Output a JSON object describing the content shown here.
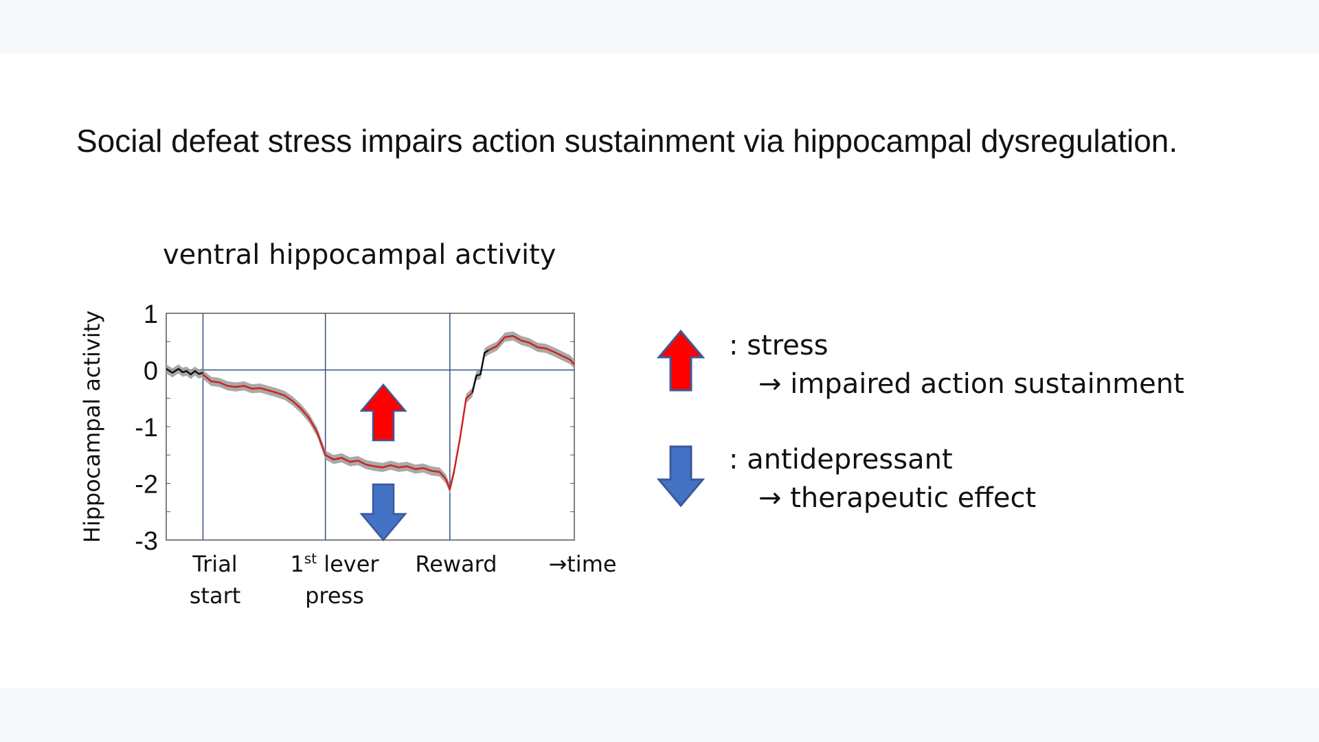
{
  "headline": "Social defeat stress impairs action sustainment via hippocampal dysregulation.",
  "colors": {
    "trace_red": "#cc2222",
    "trace_black": "#111111",
    "band_gray": "#9a9a9a",
    "up_arrow": "#ff0000",
    "down_arrow": "#4472c4",
    "axis_lines": "#2f4f7f"
  },
  "chart_data": {
    "type": "line",
    "title": "ventral hippocampal activity",
    "ylabel": "Hippocampal activity",
    "ylim": [
      -3,
      1
    ],
    "yticks": [
      "1",
      "0",
      "-1",
      "-2",
      "-3"
    ],
    "ytick_values": [
      1,
      0,
      -1,
      -2,
      -3
    ],
    "xlim": [
      0,
      100
    ],
    "event_lines": [
      9,
      39,
      69.5
    ],
    "x_labels": [
      {
        "line1": "Trial",
        "line2": "start",
        "x": 9
      },
      {
        "line1": "1",
        "sup": "st",
        "line1_rest": " lever",
        "line2": "press",
        "x": 39
      },
      {
        "line1": "Reward",
        "line2": "",
        "x": 69.5
      },
      {
        "line1": "→time",
        "line2": "",
        "x": 101
      }
    ],
    "grid": "zero-line",
    "series": [
      {
        "color": "black",
        "x": [
          0,
          1.5,
          3,
          4,
          5,
          6,
          7,
          8,
          9
        ],
        "y": [
          0.02,
          -0.05,
          0.02,
          -0.04,
          -0.02,
          -0.08,
          -0.02,
          -0.07,
          -0.05
        ]
      },
      {
        "color": "red",
        "x": [
          9,
          11,
          13,
          15,
          17,
          19,
          21,
          23,
          25,
          27,
          29,
          31,
          33,
          35,
          37,
          39,
          41,
          43,
          45,
          47,
          49,
          51,
          53,
          55,
          57,
          59,
          61,
          63,
          65,
          67,
          68.5,
          69.5,
          70.5,
          72,
          73.5,
          75
        ],
        "y": [
          -0.08,
          -0.2,
          -0.22,
          -0.28,
          -0.3,
          -0.28,
          -0.33,
          -0.32,
          -0.36,
          -0.4,
          -0.45,
          -0.55,
          -0.68,
          -0.85,
          -1.1,
          -1.5,
          -1.58,
          -1.55,
          -1.62,
          -1.6,
          -1.67,
          -1.7,
          -1.72,
          -1.68,
          -1.72,
          -1.7,
          -1.75,
          -1.73,
          -1.78,
          -1.8,
          -1.92,
          -2.1,
          -1.8,
          -1.2,
          -0.5,
          -0.4
        ]
      },
      {
        "color": "black",
        "x": [
          75,
          76,
          77,
          78,
          79
        ],
        "y": [
          -0.4,
          -0.1,
          -0.08,
          0.3,
          0.35
        ]
      },
      {
        "color": "red",
        "x": [
          79,
          81,
          83,
          85,
          87,
          89,
          91,
          93,
          95,
          97,
          99,
          100
        ],
        "y": [
          0.35,
          0.42,
          0.58,
          0.6,
          0.52,
          0.48,
          0.4,
          0.38,
          0.32,
          0.25,
          0.18,
          0.1
        ]
      }
    ],
    "band_halfwidth": 0.08
  },
  "legend": [
    {
      "icon": "up-arrow-icon",
      "color": "#ff0000",
      "label": ": stress",
      "sub": "→ impaired action sustainment"
    },
    {
      "icon": "down-arrow-icon",
      "color": "#4472c4",
      "label": ": antidepressant",
      "sub": "→ therapeutic effect"
    }
  ]
}
